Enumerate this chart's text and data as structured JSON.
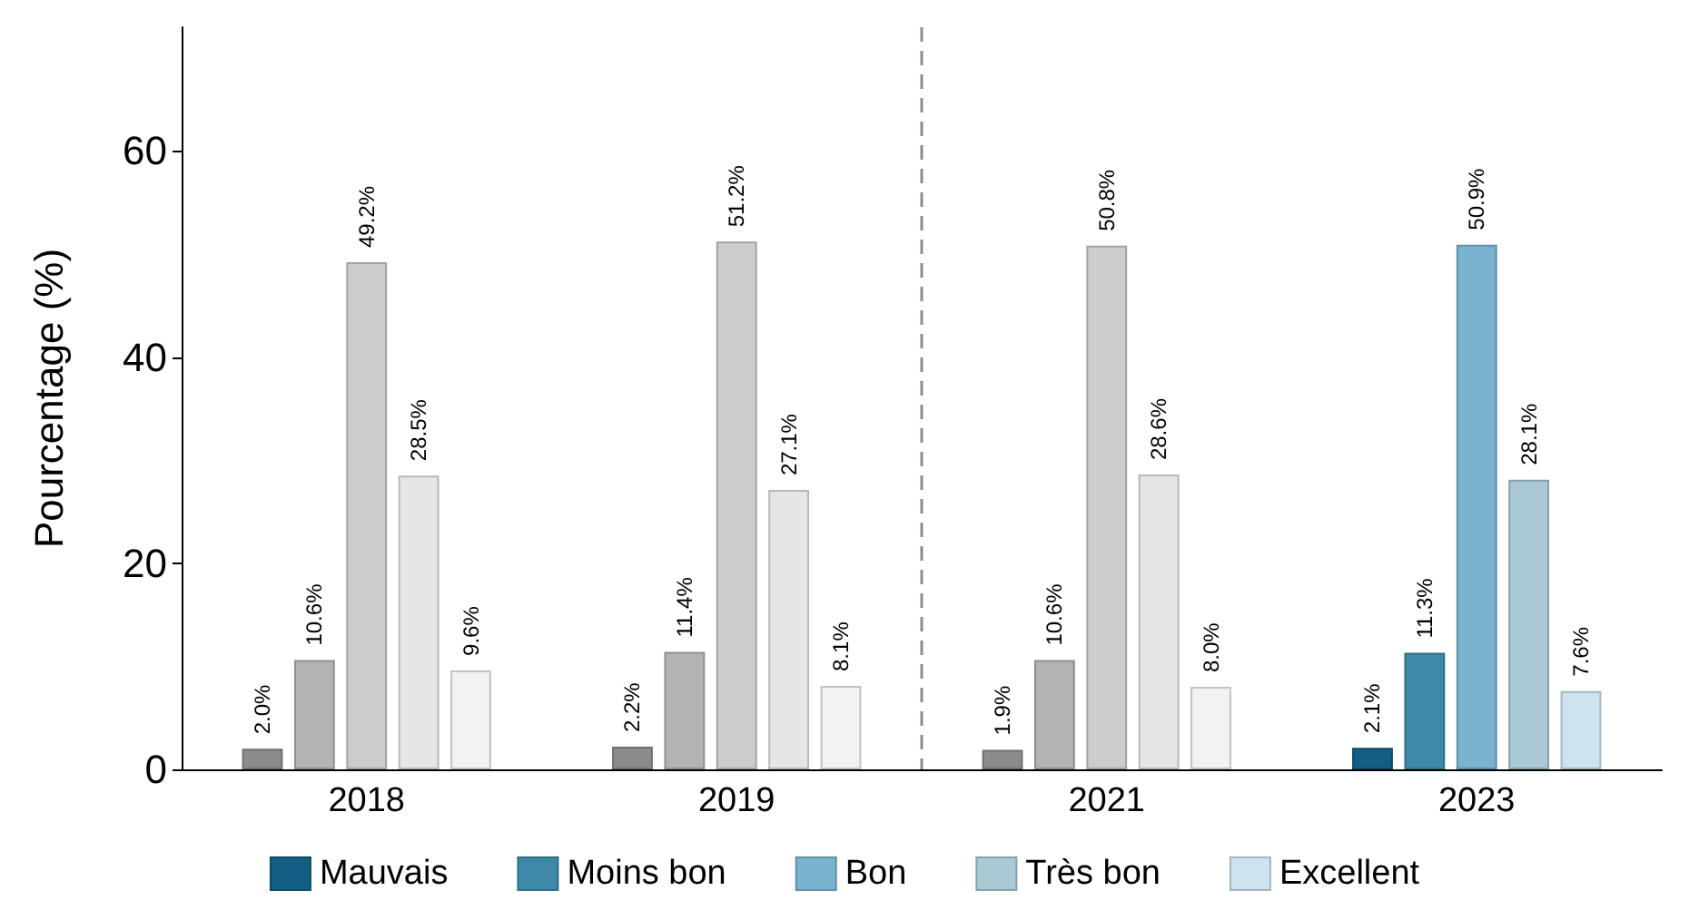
{
  "chart_data": {
    "type": "bar",
    "ylabel": "Pourcentage (%)",
    "categories": [
      "2018",
      "2019",
      "2021",
      "2023"
    ],
    "ylim": [
      0,
      72
    ],
    "yticks": [
      0,
      20,
      40,
      60
    ],
    "grid": false,
    "legend": "bottom",
    "series": [
      {
        "name": "Mauvais",
        "color": "#135e83",
        "colors": [
          "#8c8c8c",
          "#8c8c8c",
          "#8c8c8c",
          "#135e83"
        ],
        "values": [
          2.0,
          2.2,
          1.9,
          2.1
        ],
        "value_labels": [
          "2.0%",
          "2.2%",
          "1.9%",
          "2.1%"
        ]
      },
      {
        "name": "Moins bon",
        "color": "#3d89a8",
        "colors": [
          "#b3b3b3",
          "#b3b3b3",
          "#b3b3b3",
          "#3d89a8"
        ],
        "values": [
          10.6,
          11.4,
          10.6,
          11.3
        ],
        "value_labels": [
          "10.6%",
          "11.4%",
          "10.6%",
          "11.3%"
        ]
      },
      {
        "name": "Bon",
        "color": "#79b3cf",
        "colors": [
          "#cccccc",
          "#cccccc",
          "#cccccc",
          "#79b3cf"
        ],
        "values": [
          49.2,
          51.2,
          50.8,
          50.9
        ],
        "value_labels": [
          "49.2%",
          "51.2%",
          "50.8%",
          "50.9%"
        ]
      },
      {
        "name": "Très bon",
        "color": "#abc8d6",
        "colors": [
          "#e6e6e6",
          "#e6e6e6",
          "#e6e6e6",
          "#abc8d6"
        ],
        "values": [
          28.5,
          27.1,
          28.6,
          28.1
        ],
        "value_labels": [
          "28.5%",
          "27.1%",
          "28.6%",
          "28.1%"
        ]
      },
      {
        "name": "Excellent",
        "color": "#cde3f0",
        "colors": [
          "#f2f2f2",
          "#f2f2f2",
          "#f2f2f2",
          "#cde3f0"
        ],
        "values": [
          9.6,
          8.1,
          8.0,
          7.6
        ],
        "value_labels": [
          "9.6%",
          "8.1%",
          "8.0%",
          "7.6%"
        ]
      }
    ]
  }
}
